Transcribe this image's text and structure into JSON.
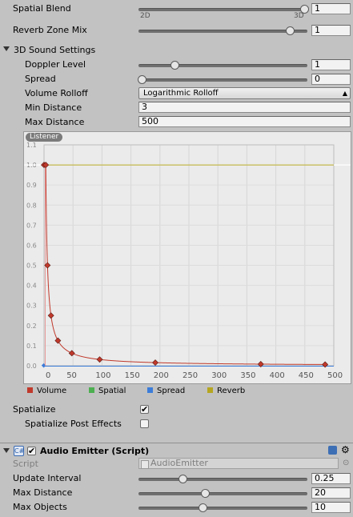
{
  "audio_source": {
    "spatial_blend": {
      "label": "Spatial Blend",
      "value": "1",
      "min_label": "2D",
      "max_label": "3D",
      "level": 1.0
    },
    "reverb_zone_mix": {
      "label": "Reverb Zone Mix",
      "value": "1",
      "level": 1.0
    },
    "sound3d": {
      "header": "3D Sound Settings",
      "doppler_level": {
        "label": "Doppler Level",
        "value": "1",
        "level": 0.2
      },
      "spread": {
        "label": "Spread",
        "value": "0",
        "level": 0.0
      },
      "volume_rolloff": {
        "label": "Volume Rolloff",
        "value": "Logarithmic Rolloff"
      },
      "min_distance": {
        "label": "Min Distance",
        "value": "3"
      },
      "max_distance": {
        "label": "Max Distance",
        "value": "500"
      }
    },
    "graph": {
      "badge": "Listener",
      "y_ticks": [
        "1.1",
        "1.0",
        "0.9",
        "0.8",
        "0.7",
        "0.6",
        "0.5",
        "0.4",
        "0.3",
        "0.2",
        "0.1",
        "0.0"
      ],
      "x_ticks": [
        "0",
        "50",
        "100",
        "150",
        "200",
        "250",
        "300",
        "350",
        "400",
        "450",
        "500"
      ],
      "legend": [
        {
          "label": "Volume",
          "color": "#c0392b"
        },
        {
          "label": "Spatial",
          "color": "#4caf50"
        },
        {
          "label": "Spread",
          "color": "#3c7dd9"
        },
        {
          "label": "Reverb",
          "color": "#b5a520"
        }
      ]
    },
    "spatialize": {
      "label": "Spatialize",
      "checked": true,
      "mark": "✔"
    },
    "spatialize_post_effects": {
      "label": "Spatialize Post Effects",
      "checked": false
    }
  },
  "audio_emitter": {
    "title": "Audio Emitter (Script)",
    "enabled_mark": "✔",
    "script": {
      "label": "Script",
      "value": "AudioEmitter"
    },
    "update_interval": {
      "label": "Update Interval",
      "value": "0.25",
      "level": 0.25
    },
    "max_distance": {
      "label": "Max Distance",
      "value": "20",
      "level": 0.4
    },
    "max_objects": {
      "label": "Max Objects",
      "value": "10",
      "level": 0.38
    }
  },
  "icons": [
    "foldout-arrow-icon",
    "script-icon",
    "book-icon",
    "gear-icon",
    "object-picker-icon"
  ],
  "colors": {
    "panel": "#c2c2c2",
    "graph_bg": "#ebebeb",
    "volume_curve": "#c0392b",
    "reverb_line": "#b5a520",
    "spread_line": "#3c7dd9"
  }
}
